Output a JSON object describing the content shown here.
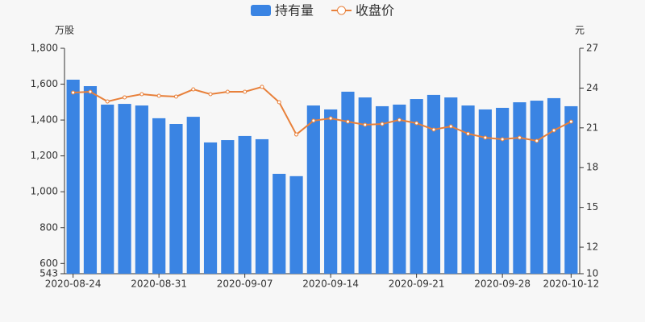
{
  "chart_data": {
    "type": "bar-line",
    "y_unit": "万股",
    "y2_unit": "元",
    "categories": [
      "2020-08-24",
      null,
      null,
      null,
      null,
      "2020-08-31",
      null,
      null,
      null,
      null,
      "2020-09-07",
      null,
      null,
      null,
      null,
      "2020-09-14",
      null,
      null,
      null,
      null,
      "2020-09-21",
      null,
      null,
      null,
      null,
      "2020-09-28",
      null,
      null,
      null,
      "2020-10-12"
    ],
    "series": [
      {
        "name": "持有量",
        "type": "bar",
        "color": "#3a84e3",
        "values": [
          1625,
          1589,
          1486,
          1490,
          1481,
          1410,
          1378,
          1418,
          1275,
          1288,
          1311,
          1293,
          1100,
          1087,
          1481,
          1459,
          1558,
          1526,
          1477,
          1486,
          1517,
          1540,
          1526,
          1481,
          1459,
          1468,
          1499,
          1508,
          1522,
          1477
        ]
      },
      {
        "name": "收盘价",
        "type": "line",
        "axis": "y2",
        "color": "#e8803a",
        "values": [
          23.66,
          23.72,
          22.99,
          23.3,
          23.54,
          23.42,
          23.36,
          23.9,
          23.54,
          23.72,
          23.72,
          24.09,
          22.93,
          20.5,
          21.54,
          21.72,
          21.47,
          21.23,
          21.29,
          21.6,
          21.35,
          20.87,
          21.11,
          20.56,
          20.26,
          20.14,
          20.26,
          20.02,
          20.81,
          21.47
        ]
      }
    ],
    "ylim": [
      543,
      1800
    ],
    "yticks": [
      543,
      600,
      800,
      {
        "value": 1000,
        "label": "1,000"
      },
      {
        "value": 1200,
        "label": "1,200"
      },
      {
        "value": 1400,
        "label": "1,400"
      },
      {
        "value": 1600,
        "label": "1,600"
      },
      {
        "value": 1800,
        "label": "1,800"
      }
    ],
    "y2lim": [
      10,
      27
    ],
    "y2ticks": [
      10,
      12,
      15,
      18,
      21,
      24,
      27
    ]
  }
}
